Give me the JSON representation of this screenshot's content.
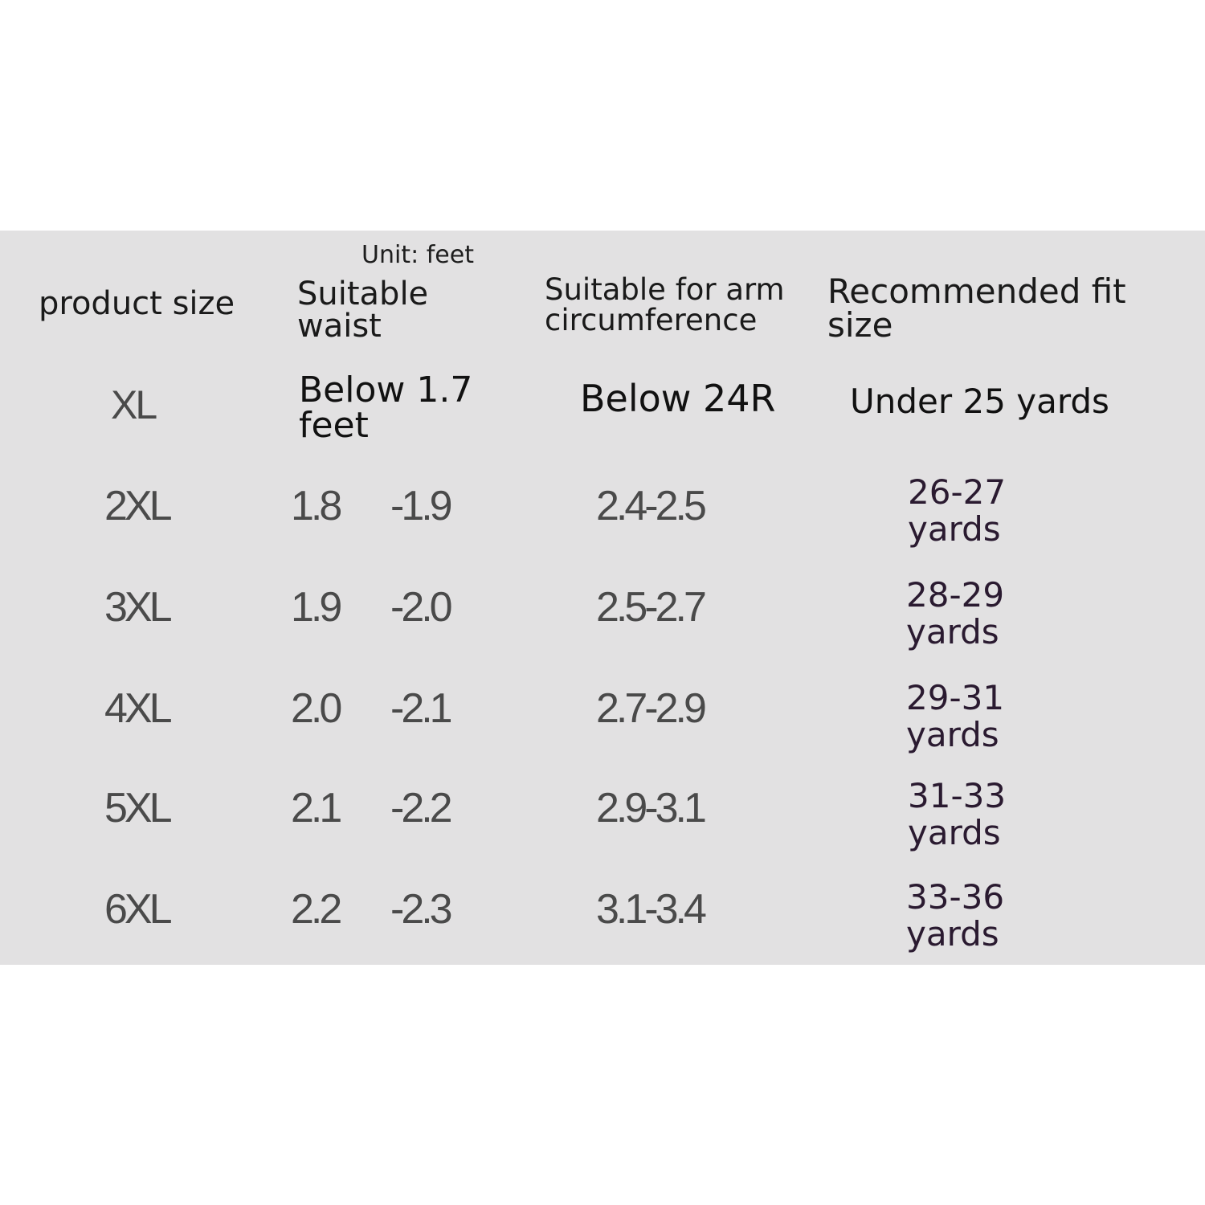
{
  "unit_note": "Unit: feet",
  "headers": {
    "product_size": "product size",
    "waist": "Suitable\nwaist",
    "arm": "Suitable for arm\ncircumference",
    "fit": "Recommended fit\nsize"
  },
  "rows": [
    {
      "size": "XL",
      "waist": "Below 1.7\nfeet",
      "arm": "Below 24R",
      "fit": "Under 25 yards"
    },
    {
      "size": "2XL",
      "waist_from": "1.8",
      "waist_to": "-1.9",
      "arm": "2.4-2.5",
      "fit": "26-27\nyards"
    },
    {
      "size": "3XL",
      "waist_from": "1.9",
      "waist_to": "-2.0",
      "arm": "2.5-2.7",
      "fit": "28-29\nyards"
    },
    {
      "size": "4XL",
      "waist_from": "2.0",
      "waist_to": "-2.1",
      "arm": "2.7-2.9",
      "fit": "29-31\nyards"
    },
    {
      "size": "5XL",
      "waist_from": "2.1",
      "waist_to": "-2.2",
      "arm": "2.9-3.1",
      "fit": "31-33\nyards"
    },
    {
      "size": "6XL",
      "waist_from": "2.2",
      "waist_to": "-2.3",
      "arm": "3.1-3.4",
      "fit": "33-36\nyards"
    }
  ],
  "colors": {
    "panel_background": "#e2e1e2",
    "page_background": "#ffffff",
    "fit_text": "#2a1a30"
  }
}
